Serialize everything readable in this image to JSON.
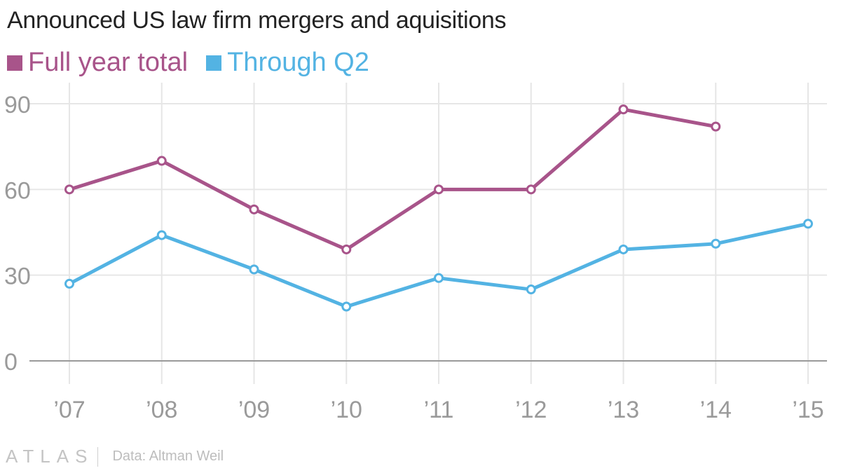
{
  "chart_data": {
    "type": "line",
    "title": "Announced US law firm mergers and aquisitions",
    "categories": [
      "’07",
      "’08",
      "’09",
      "’10",
      "’11",
      "’12",
      "’13",
      "’14",
      "’15"
    ],
    "series": [
      {
        "name": "Full year total",
        "color": "#a8548a",
        "values": [
          60,
          70,
          53,
          39,
          60,
          60,
          88,
          82,
          null
        ]
      },
      {
        "name": "Through Q2",
        "color": "#53b3e3",
        "values": [
          27,
          44,
          32,
          19,
          29,
          25,
          39,
          41,
          48
        ]
      }
    ],
    "yticks": [
      0,
      30,
      60,
      90
    ],
    "ylim": [
      0,
      90
    ],
    "xlabel": "",
    "ylabel": "",
    "grid": true,
    "legend_position": "top-left"
  },
  "footer": {
    "brand": "ATLAS",
    "source": "Data: Altman Weil"
  },
  "colors": {
    "axis_text": "#9a9a9a",
    "grid": "#e6e6e6",
    "baseline": "#9a9a9a"
  }
}
